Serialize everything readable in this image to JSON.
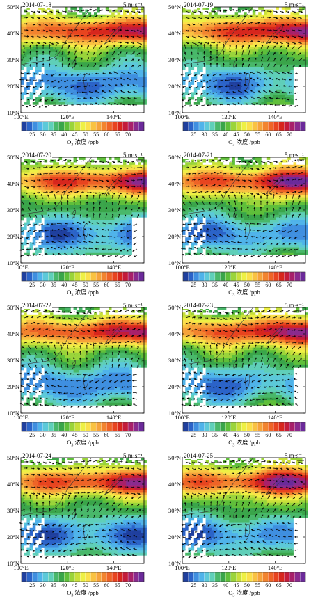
{
  "figure": {
    "panels": [
      {
        "date": "2014-07-18",
        "variant": 0
      },
      {
        "date": "2014-07-19",
        "variant": 1
      },
      {
        "date": "2014-07-20",
        "variant": 2
      },
      {
        "date": "2014-07-21",
        "variant": 3
      },
      {
        "date": "2014-07-22",
        "variant": 4
      },
      {
        "date": "2014-07-23",
        "variant": 5
      },
      {
        "date": "2014-07-24",
        "variant": 6
      },
      {
        "date": "2014-07-25",
        "variant": 7
      }
    ],
    "wind_scale_label": "5 m·s⁻¹",
    "y_ticks": [
      "50°N",
      "40°N",
      "30°N",
      "20°N",
      "10°N"
    ],
    "x_ticks": [
      "100°E",
      "120°E",
      "140°E"
    ],
    "colorbar": {
      "tick_labels": [
        "25",
        "30",
        "35",
        "40",
        "45",
        "50",
        "55",
        "60",
        "65",
        "70"
      ],
      "title_prefix": "O",
      "title_sub": "3",
      "title_suffix": " 浓度 /ppb",
      "colors": [
        "#1f3f9e",
        "#2b63c8",
        "#3f8fe0",
        "#4fb3ea",
        "#5cc9d9",
        "#5fcfb8",
        "#49b86a",
        "#3aa54a",
        "#5fbf3a",
        "#9ad43a",
        "#c9e03b",
        "#eef044",
        "#fbe04a",
        "#f9c242",
        "#f6a33b",
        "#f2842f",
        "#ee6427",
        "#e8441f",
        "#d7261d",
        "#c41b3a",
        "#a8206a",
        "#8a2a8e",
        "#6b2a9a"
      ]
    }
  }
}
